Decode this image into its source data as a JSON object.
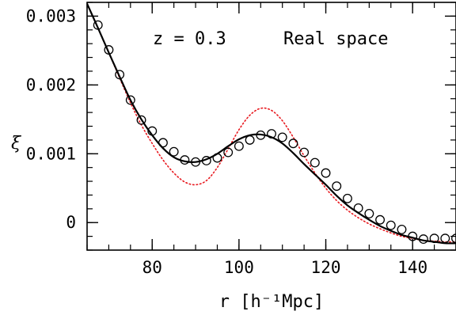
{
  "chart_data": {
    "type": "line",
    "xlabel": "r [h⁻¹Mpc]",
    "ylabel": "ξ",
    "xlim": [
      65,
      150
    ],
    "ylim": [
      -0.0004,
      0.0032
    ],
    "x_ticks": [
      80,
      100,
      120,
      140
    ],
    "x_tick_labels": [
      "80",
      "100",
      "120",
      "140"
    ],
    "y_ticks": [
      0,
      0.001,
      0.002,
      0.003
    ],
    "y_tick_labels": [
      "0",
      "0.001",
      "0.002",
      "0.003"
    ],
    "x_minor_step": 5,
    "y_minor_step": 0.0002,
    "grid": false,
    "annotations": [
      "z = 0.3",
      "Real space"
    ],
    "series": [
      {
        "style": "markers",
        "marker": "open-circle",
        "color": "#000000",
        "x": [
          67.5,
          70,
          72.5,
          75,
          77.5,
          80,
          82.5,
          85,
          87.5,
          90,
          92.5,
          95,
          97.5,
          100,
          102.5,
          105,
          107.5,
          110,
          112.5,
          115,
          117.5,
          120,
          122.5,
          125,
          127.5,
          130,
          132.5,
          135,
          137.5,
          140,
          142.5,
          145,
          147.5,
          150
        ],
        "values": [
          0.00287,
          0.00251,
          0.00215,
          0.00178,
          0.00149,
          0.00133,
          0.00116,
          0.00103,
          0.00091,
          0.00088,
          0.0009,
          0.00094,
          0.00102,
          0.00111,
          0.0012,
          0.00127,
          0.00129,
          0.00124,
          0.00115,
          0.00102,
          0.00087,
          0.00072,
          0.00053,
          0.00035,
          0.00021,
          0.00013,
          4e-05,
          -4e-05,
          -0.0001,
          -0.0002,
          -0.00024,
          -0.00023,
          -0.00023,
          -0.00023
        ]
      },
      {
        "style": "solid",
        "color": "#000000",
        "x": [
          65,
          67.5,
          70,
          72.5,
          75,
          77.5,
          80,
          82.5,
          85,
          87.5,
          90,
          92.5,
          95,
          97.5,
          100,
          102.5,
          105,
          107.5,
          110,
          112.5,
          115,
          117.5,
          120,
          122.5,
          125,
          127.5,
          130,
          132.5,
          135,
          137.5,
          140,
          142.5,
          145,
          147.5,
          150
        ],
        "values": [
          0.00318,
          0.00283,
          0.00247,
          0.00212,
          0.00178,
          0.0015,
          0.00127,
          0.00108,
          0.00095,
          0.00089,
          0.00088,
          0.00092,
          0.001,
          0.00111,
          0.00121,
          0.00127,
          0.00128,
          0.00124,
          0.00115,
          0.00101,
          0.00085,
          0.0007,
          0.00055,
          0.00039,
          0.00025,
          0.00014,
          4e-05,
          -5e-05,
          -0.00012,
          -0.00018,
          -0.00022,
          -0.00026,
          -0.00028,
          -0.0003,
          -0.0003
        ]
      },
      {
        "style": "dotted",
        "color": "#e8191f",
        "x": [
          65,
          67.5,
          70,
          72.5,
          75,
          77.5,
          80,
          82.5,
          85,
          87.5,
          90,
          92.5,
          95,
          97.5,
          100,
          102.5,
          105,
          107.5,
          110,
          112.5,
          115,
          117.5,
          120,
          122.5,
          125,
          127.5,
          130,
          132.5,
          135,
          137.5,
          140,
          142.5,
          145,
          147.5,
          150
        ],
        "values": [
          0.00318,
          0.00283,
          0.00247,
          0.0021,
          0.00174,
          0.00142,
          0.00115,
          0.00091,
          0.00072,
          0.00059,
          0.00055,
          0.00061,
          0.0008,
          0.00107,
          0.00135,
          0.00156,
          0.00166,
          0.00163,
          0.00148,
          0.00124,
          0.00097,
          0.00072,
          0.0005,
          0.00032,
          0.00018,
          7e-05,
          -2e-05,
          -9e-05,
          -0.00015,
          -0.0002,
          -0.00023,
          -0.00026,
          -0.00027,
          -0.00028,
          -0.00028
        ]
      }
    ]
  }
}
